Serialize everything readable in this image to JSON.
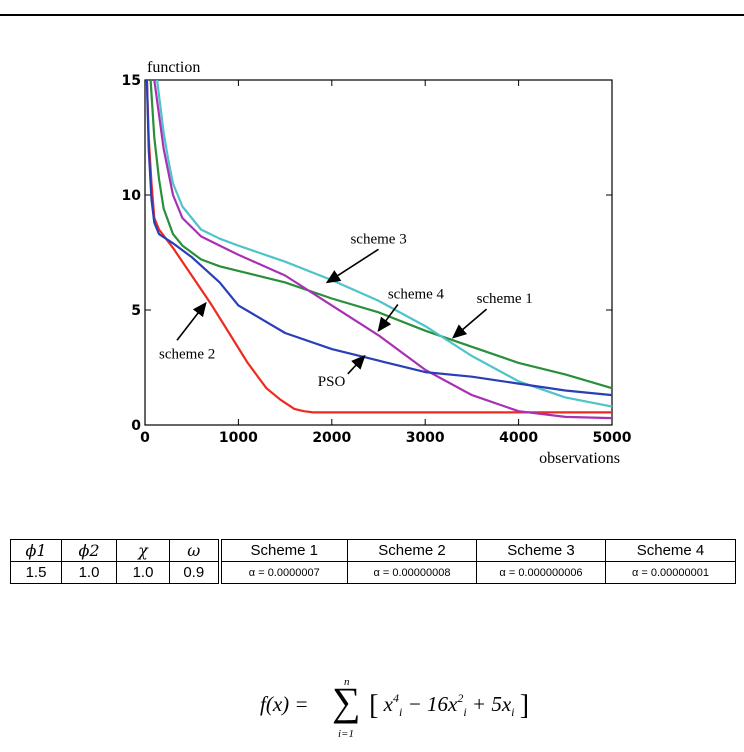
{
  "chart_data": {
    "type": "line",
    "ylabel": "function",
    "xlabel": "observations",
    "xlim": [
      0,
      5000
    ],
    "ylim": [
      0,
      15
    ],
    "xticks": [
      "0",
      "1000",
      "2000",
      "3000",
      "4000",
      "5000"
    ],
    "yticks": [
      "0",
      "5",
      "10",
      "15"
    ],
    "grid": false,
    "series": [
      {
        "name": "scheme 1",
        "color": "#2a8f3a",
        "x": [
          60,
          100,
          150,
          200,
          300,
          400,
          600,
          800,
          1000,
          1500,
          2000,
          2500,
          3000,
          3500,
          4000,
          4500,
          5000
        ],
        "y": [
          15,
          12.5,
          10.7,
          9.4,
          8.3,
          7.8,
          7.2,
          6.9,
          6.7,
          6.2,
          5.5,
          4.9,
          4.1,
          3.4,
          2.7,
          2.2,
          1.6
        ]
      },
      {
        "name": "scheme 2",
        "color": "#ee2a1e",
        "x": [
          20,
          40,
          70,
          100,
          150,
          300,
          500,
          700,
          900,
          1100,
          1300,
          1450,
          1600,
          1700,
          1800,
          2000,
          3000,
          4000,
          5000
        ],
        "y": [
          15,
          12.5,
          10.5,
          9.0,
          8.5,
          7.7,
          6.5,
          5.3,
          4.0,
          2.7,
          1.6,
          1.1,
          0.7,
          0.6,
          0.55,
          0.55,
          0.55,
          0.55,
          0.55
        ]
      },
      {
        "name": "scheme 3",
        "color": "#4ec3c8",
        "x": [
          130,
          200,
          250,
          300,
          400,
          600,
          800,
          1000,
          1500,
          2000,
          2500,
          3000,
          3500,
          4000,
          4500,
          5000
        ],
        "y": [
          15,
          12.7,
          11.5,
          10.5,
          9.5,
          8.5,
          8.1,
          7.8,
          7.1,
          6.3,
          5.4,
          4.3,
          3.0,
          1.9,
          1.2,
          0.8
        ]
      },
      {
        "name": "scheme 4",
        "color": "#a831b3",
        "x": [
          100,
          200,
          300,
          400,
          600,
          800,
          1000,
          1500,
          2000,
          2500,
          3000,
          3500,
          4000,
          4500,
          5000
        ],
        "y": [
          15,
          12.0,
          10.0,
          9.0,
          8.2,
          7.8,
          7.4,
          6.5,
          5.2,
          3.9,
          2.4,
          1.3,
          0.6,
          0.35,
          0.3
        ]
      },
      {
        "name": "PSO",
        "color": "#2a3eb8",
        "x": [
          20,
          40,
          70,
          100,
          150,
          300,
          500,
          800,
          1000,
          1500,
          2000,
          2500,
          3000,
          3500,
          4000,
          4500,
          5000
        ],
        "y": [
          15,
          12.0,
          9.8,
          8.8,
          8.3,
          7.9,
          7.3,
          6.2,
          5.2,
          4.0,
          3.3,
          2.8,
          2.3,
          2.1,
          1.8,
          1.5,
          1.3
        ]
      }
    ],
    "annotations": [
      {
        "text": "scheme 3",
        "x": 2200,
        "y": 7.9,
        "arrow_to": [
          1950,
          6.2
        ]
      },
      {
        "text": "scheme 4",
        "x": 2600,
        "y": 5.5,
        "arrow_to": [
          2500,
          4.1
        ]
      },
      {
        "text": "scheme 1",
        "x": 3550,
        "y": 5.3,
        "arrow_to": [
          3300,
          3.8
        ]
      },
      {
        "text": "scheme 2",
        "x": 150,
        "y": 2.9,
        "arrow_to": [
          650,
          5.3
        ]
      },
      {
        "text": "PSO",
        "x": 1850,
        "y": 1.7,
        "arrow_to": [
          2350,
          3.0
        ]
      }
    ]
  },
  "table": {
    "headers": [
      "ϕ1",
      "ϕ2",
      "χ",
      "ω",
      "Scheme 1",
      "Scheme 2",
      "Scheme 3",
      "Scheme 4"
    ],
    "values": [
      "1.5",
      "1.0",
      "1.0",
      "0.9",
      "α = 0.0000007",
      "α = 0.00000008",
      "α = 0.000000006",
      "α = 0.00000001"
    ]
  },
  "formula": {
    "lhs": "f(x) =",
    "upper": "n",
    "lower": "i=1",
    "term1": "x",
    "exp1": "4",
    "term2": " − 16x",
    "exp2": "2",
    "term3": " + 5x",
    "sub": "i"
  }
}
